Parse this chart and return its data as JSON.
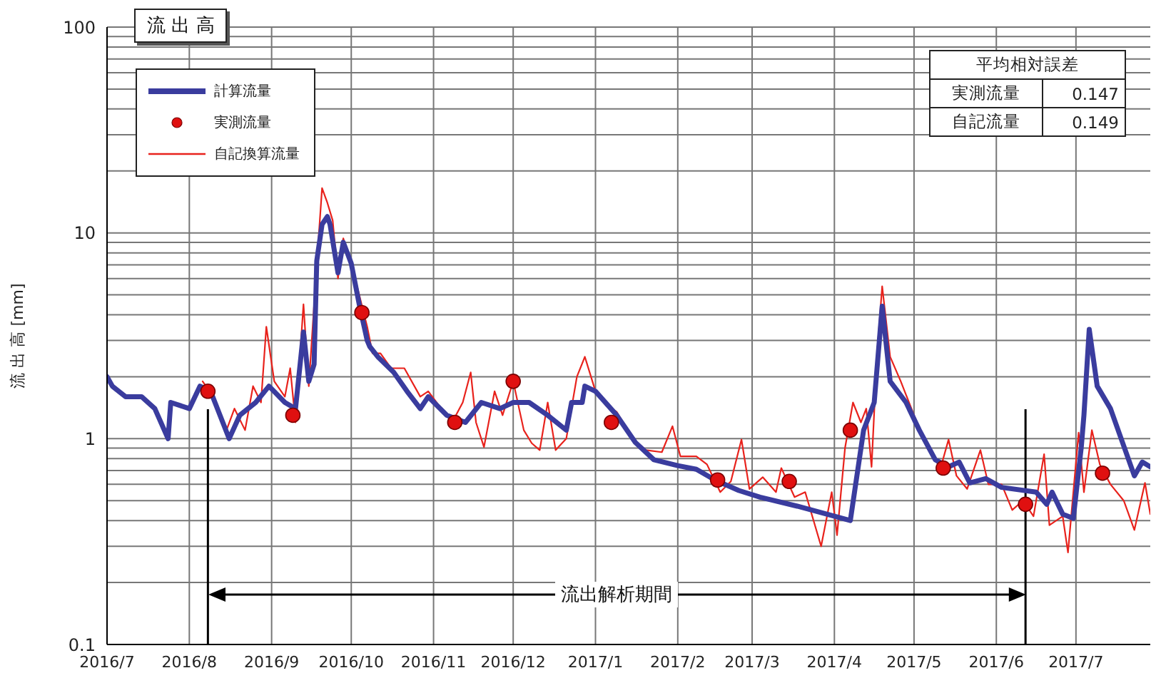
{
  "chart_data": {
    "type": "line",
    "title": "流 出 高",
    "ylabel": "流 出 高 [mm]",
    "log": "y",
    "grid": true,
    "legend": "top left",
    "xlim": [
      "2016-07-01",
      "2017-07-29"
    ],
    "xticks": [
      {
        "value": "2016-07",
        "label": "2016/7"
      },
      {
        "value": "2016-08",
        "label": "2016/8"
      },
      {
        "value": "2016-09",
        "label": "2016/9"
      },
      {
        "value": "2016-10",
        "label": "2016/10"
      },
      {
        "value": "2016-11",
        "label": "2016/11"
      },
      {
        "value": "2016-12",
        "label": "2016/12"
      },
      {
        "value": "2017-01",
        "label": "2017/1"
      },
      {
        "value": "2017-02",
        "label": "2017/2"
      },
      {
        "value": "2017-03",
        "label": "2017/3"
      },
      {
        "value": "2017-04",
        "label": "2017/4"
      },
      {
        "value": "2017-05",
        "label": "2017/5"
      },
      {
        "value": "2017-06",
        "label": "2017/6"
      },
      {
        "value": "2017-07",
        "label": "2017/7"
      }
    ],
    "ylim": [
      0.1,
      100
    ],
    "yticks": [
      {
        "value": 0.1,
        "label": "0.1"
      },
      {
        "value": 0.2,
        "label": null
      },
      {
        "value": 0.3,
        "label": null
      },
      {
        "value": 0.4,
        "label": null
      },
      {
        "value": 0.5,
        "label": null
      },
      {
        "value": 0.6,
        "label": null
      },
      {
        "value": 0.7,
        "label": null
      },
      {
        "value": 0.8,
        "label": null
      },
      {
        "value": 0.9,
        "label": null
      },
      1,
      {
        "value": 2,
        "label": null
      },
      {
        "value": 3,
        "label": null
      },
      {
        "value": 4,
        "label": null
      },
      {
        "value": 5,
        "label": null
      },
      {
        "value": 6,
        "label": null
      },
      {
        "value": 7,
        "label": null
      },
      {
        "value": 8,
        "label": null
      },
      {
        "value": 9,
        "label": null
      },
      10,
      {
        "value": 20,
        "label": null
      },
      {
        "value": 30,
        "label": null
      },
      {
        "value": 40,
        "label": null
      },
      {
        "value": 50,
        "label": null
      },
      {
        "value": 60,
        "label": null
      },
      {
        "value": 70,
        "label": null
      },
      {
        "value": 80,
        "label": null
      },
      {
        "value": 90,
        "label": null
      },
      100
    ],
    "series": [
      {
        "name": "計算流量",
        "color": "#3a3c9e",
        "marker": "none",
        "x": [
          "2016-07-01",
          "2016-07-03",
          "2016-07-08",
          "2016-07-14",
          "2016-07-19",
          "2016-07-24",
          "2016-07-25",
          "2016-08-01",
          "2016-08-05",
          "2016-08-09",
          "2016-08-16",
          "2016-08-20",
          "2016-08-26",
          "2016-08-31",
          "2016-09-06",
          "2016-09-10",
          "2016-09-13",
          "2016-09-15",
          "2016-09-17",
          "2016-09-18",
          "2016-09-20",
          "2016-09-22",
          "2016-09-23",
          "2016-09-26",
          "2016-09-28",
          "2016-10-01",
          "2016-10-04",
          "2016-10-07",
          "2016-10-08",
          "2016-10-11",
          "2016-10-17",
          "2016-10-22",
          "2016-10-27",
          "2016-10-30",
          "2016-11-06",
          "2016-11-13",
          "2016-11-19",
          "2016-11-26",
          "2016-12-01",
          "2016-12-07",
          "2016-12-14",
          "2016-12-21",
          "2016-12-23",
          "2016-12-27",
          "2016-12-28",
          "2017-01-01",
          "2017-01-09",
          "2017-01-16",
          "2017-01-23",
          "2017-02-01",
          "2017-02-08",
          "2017-02-15",
          "2017-02-24",
          "2017-03-04",
          "2017-03-18",
          "2017-04-07",
          "2017-04-12",
          "2017-04-16",
          "2017-04-19",
          "2017-04-22",
          "2017-04-28",
          "2017-05-03",
          "2017-05-09",
          "2017-05-14",
          "2017-05-18",
          "2017-05-22",
          "2017-05-28",
          "2017-06-03",
          "2017-06-16",
          "2017-06-20",
          "2017-06-22",
          "2017-06-26",
          "2017-06-30",
          "2017-07-03",
          "2017-07-04",
          "2017-07-06",
          "2017-07-09",
          "2017-07-14",
          "2017-07-23",
          "2017-07-26",
          "2017-07-29"
        ],
        "values": [
          2.0,
          1.8,
          1.6,
          1.6,
          1.4,
          1.0,
          1.5,
          1.4,
          1.8,
          1.7,
          1.0,
          1.3,
          1.5,
          1.8,
          1.5,
          1.4,
          3.3,
          1.9,
          2.3,
          7.3,
          11,
          12,
          11,
          6.4,
          9,
          7.1,
          4.5,
          3.0,
          2.8,
          2.5,
          2.1,
          1.7,
          1.4,
          1.6,
          1.3,
          1.2,
          1.5,
          1.4,
          1.5,
          1.5,
          1.3,
          1.1,
          1.5,
          1.5,
          1.8,
          1.7,
          1.3,
          0.96,
          0.79,
          0.74,
          0.71,
          0.63,
          0.56,
          0.52,
          0.47,
          0.4,
          1.1,
          1.5,
          4.4,
          1.9,
          1.5,
          1.1,
          0.79,
          0.73,
          0.77,
          0.61,
          0.64,
          0.58,
          0.55,
          0.48,
          0.55,
          0.43,
          0.41,
          0.91,
          1.3,
          3.4,
          1.8,
          1.4,
          0.66,
          0.77,
          0.73
        ]
      },
      {
        "name": "実測流量",
        "type": "scatter",
        "color": "#e01010",
        "marker": "circle",
        "x": [
          "2016-08-08",
          "2016-09-09",
          "2016-10-05",
          "2016-11-09",
          "2016-12-01",
          "2017-01-07",
          "2017-02-16",
          "2017-03-15",
          "2017-04-07",
          "2017-05-12",
          "2017-06-12",
          "2017-07-11"
        ],
        "values": [
          1.7,
          1.3,
          4.1,
          1.2,
          1.9,
          1.2,
          0.63,
          0.62,
          1.1,
          0.72,
          0.48,
          0.68
        ]
      },
      {
        "name": "自記換算流量",
        "color": "#e8221c",
        "marker": "none",
        "x": [
          "2016-08-06",
          "2016-08-10",
          "2016-08-15",
          "2016-08-18",
          "2016-08-22",
          "2016-08-25",
          "2016-08-28",
          "2016-08-30",
          "2016-09-02",
          "2016-09-06",
          "2016-09-08",
          "2016-09-10",
          "2016-09-13",
          "2016-09-15",
          "2016-09-18",
          "2016-09-20",
          "2016-09-22",
          "2016-09-24",
          "2016-09-26",
          "2016-09-28",
          "2016-10-01",
          "2016-10-04",
          "2016-10-07",
          "2016-10-09",
          "2016-10-12",
          "2016-10-16",
          "2016-10-21",
          "2016-10-27",
          "2016-10-30",
          "2016-11-03",
          "2016-11-08",
          "2016-11-12",
          "2016-11-15",
          "2016-11-17",
          "2016-11-20",
          "2016-11-24",
          "2016-11-27",
          "2016-12-01",
          "2016-12-05",
          "2016-12-08",
          "2016-12-11",
          "2016-12-14",
          "2016-12-17",
          "2016-12-21",
          "2016-12-25",
          "2016-12-28",
          "2017-01-01",
          "2017-01-05",
          "2017-01-09",
          "2017-01-15",
          "2017-01-20",
          "2017-01-26",
          "2017-01-30",
          "2017-02-02",
          "2017-02-08",
          "2017-02-12",
          "2017-02-17",
          "2017-02-21",
          "2017-02-25",
          "2017-02-28",
          "2017-03-05",
          "2017-03-10",
          "2017-03-12",
          "2017-03-17",
          "2017-03-21",
          "2017-03-27",
          "2017-03-31",
          "2017-04-02",
          "2017-04-05",
          "2017-04-08",
          "2017-04-11",
          "2017-04-13",
          "2017-04-15",
          "2017-04-17",
          "2017-04-19",
          "2017-04-22",
          "2017-04-26",
          "2017-05-01",
          "2017-05-06",
          "2017-05-11",
          "2017-05-14",
          "2017-05-17",
          "2017-05-21",
          "2017-05-26",
          "2017-05-29",
          "2017-06-03",
          "2017-06-07",
          "2017-06-11",
          "2017-06-15",
          "2017-06-19",
          "2017-06-21",
          "2017-06-26",
          "2017-06-28",
          "2017-07-02",
          "2017-07-04",
          "2017-07-07",
          "2017-07-10",
          "2017-07-14",
          "2017-07-19",
          "2017-07-23",
          "2017-07-27",
          "2017-07-29"
        ],
        "values": [
          1.9,
          1.6,
          1.1,
          1.4,
          1.1,
          1.8,
          1.5,
          3.5,
          1.9,
          1.6,
          2.2,
          1.2,
          4.5,
          1.8,
          7,
          16.5,
          14,
          11.5,
          6,
          9.4,
          7,
          5,
          3.5,
          2.6,
          2.6,
          2.2,
          2.2,
          1.6,
          1.7,
          1.45,
          1.2,
          1.5,
          2.1,
          1.2,
          0.91,
          1.7,
          1.3,
          1.9,
          1.1,
          0.95,
          0.88,
          1.5,
          0.88,
          1.0,
          2.0,
          2.5,
          1.7,
          1.45,
          1.35,
          1.0,
          0.88,
          0.86,
          1.15,
          0.82,
          0.82,
          0.75,
          0.55,
          0.62,
          0.99,
          0.57,
          0.65,
          0.55,
          0.72,
          0.52,
          0.55,
          0.3,
          0.55,
          0.34,
          0.9,
          1.5,
          1.2,
          1.4,
          0.73,
          2.5,
          5.5,
          2.5,
          1.9,
          1.3,
          0.9,
          0.72,
          0.99,
          0.66,
          0.57,
          0.88,
          0.6,
          0.6,
          0.45,
          0.5,
          0.42,
          0.84,
          0.38,
          0.42,
          0.28,
          1.07,
          0.55,
          1.1,
          0.75,
          0.6,
          0.5,
          0.36,
          0.61,
          0.43
        ]
      }
    ],
    "ref_lines": [
      {
        "axis": "x",
        "value": "2016-08-08",
        "color": "#000000"
      },
      {
        "axis": "x",
        "value": "2017-06-12",
        "color": "#000000"
      }
    ],
    "annotations": [
      "流出解析期間",
      "平均相対誤差",
      "実測流量",
      "0.147",
      "自記流量",
      "0.149"
    ]
  }
}
